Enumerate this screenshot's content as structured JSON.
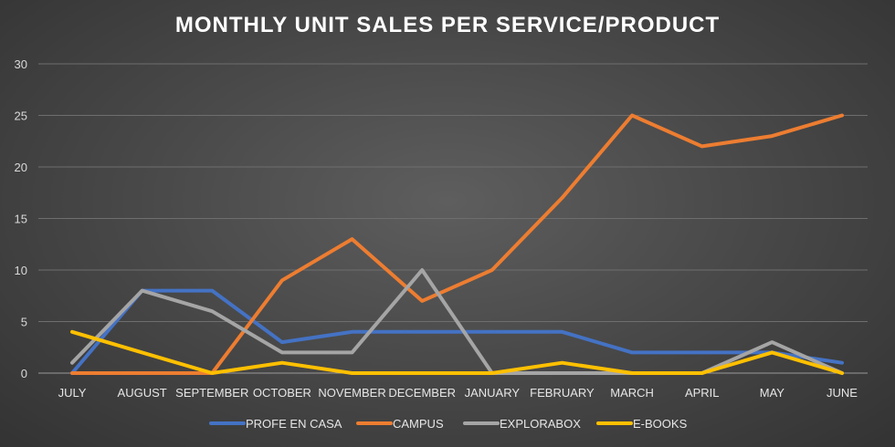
{
  "chart_data": {
    "type": "line",
    "title": "MONTHLY UNIT SALES PER SERVICE/PRODUCT",
    "xlabel": "",
    "ylabel": "",
    "ylim": [
      0,
      30
    ],
    "yticks": [
      0,
      5,
      10,
      15,
      20,
      25,
      30
    ],
    "grid": true,
    "legend_position": "bottom",
    "categories": [
      "JULY",
      "AUGUST",
      "SEPTEMBER",
      "OCTOBER",
      "NOVEMBER",
      "DECEMBER",
      "JANUARY",
      "FEBRUARY",
      "MARCH",
      "APRIL",
      "MAY",
      "JUNE"
    ],
    "series": [
      {
        "name": "PROFE EN CASA",
        "color": "#4472c4",
        "values": [
          0,
          8,
          8,
          3,
          4,
          4,
          4,
          4,
          2,
          2,
          2,
          1
        ]
      },
      {
        "name": "CAMPUS",
        "color": "#ed7d31",
        "values": [
          0,
          0,
          0,
          9,
          13,
          7,
          10,
          17,
          25,
          22,
          23,
          25
        ]
      },
      {
        "name": "EXPLORABOX",
        "color": "#a5a5a5",
        "values": [
          1,
          8,
          6,
          2,
          2,
          10,
          0,
          0,
          0,
          0,
          3,
          0
        ]
      },
      {
        "name": "E-BOOKS",
        "color": "#ffc000",
        "values": [
          4,
          2,
          0,
          1,
          0,
          0,
          0,
          1,
          0,
          0,
          2,
          0
        ]
      }
    ]
  }
}
